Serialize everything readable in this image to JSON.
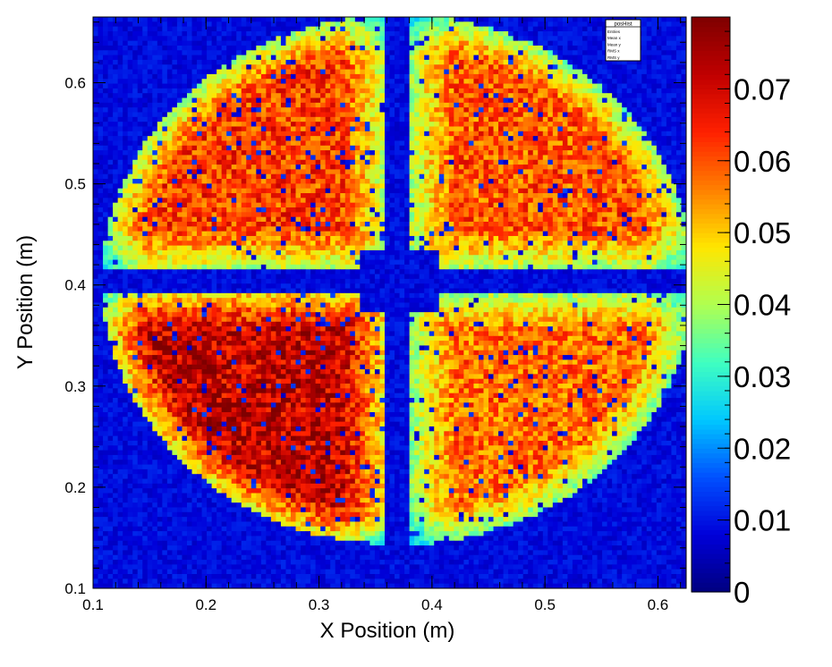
{
  "chart_data": {
    "type": "heatmap",
    "title": "",
    "xlabel": "X Position (m)",
    "ylabel": "Y Position (m)",
    "xlim": [
      0.1,
      0.625
    ],
    "ylim": [
      0.1,
      0.665
    ],
    "x_ticks": [
      0.1,
      0.2,
      0.3,
      0.4,
      0.5,
      0.6
    ],
    "x_tick_labels": [
      "0.1",
      "0.2",
      "0.3",
      "0.4",
      "0.5",
      "0.6"
    ],
    "y_ticks": [
      0.1,
      0.2,
      0.3,
      0.4,
      0.5,
      0.6
    ],
    "y_tick_labels": [
      "0.1",
      "0.2",
      "0.3",
      "0.4",
      "0.5",
      "0.6"
    ],
    "colorbar": {
      "min": 0,
      "max": 0.08,
      "ticks": [
        0,
        0.01,
        0.02,
        0.03,
        0.04,
        0.05,
        0.06,
        0.07
      ],
      "tick_labels": [
        "0",
        "0.01",
        "0.02",
        "0.03",
        "0.04",
        "0.05",
        "0.06",
        "0.07"
      ]
    },
    "colormap": [
      "#00007f",
      "#0000d9",
      "#0050ff",
      "#00c8ff",
      "#40ffc0",
      "#b0ff50",
      "#ffe600",
      "#ff8000",
      "#ff2000",
      "#c00000",
      "#7f0000"
    ],
    "background_color": "#0a2a8f",
    "grid": false,
    "stats_box": {
      "title": "posHist",
      "rows": [
        "Entries",
        "Mean x",
        "Mean y",
        "RMS x",
        "RMS y"
      ]
    },
    "field": {
      "description_values": {
        "circle_center": [
          0.37,
          0.405
        ],
        "circle_radius": 0.262,
        "gap_x_center": 0.37,
        "gap_y_center": 0.405,
        "gap_half_width": 0.012,
        "inner_square_x": [
          0.335,
          0.405
        ],
        "inner_square_y": [
          0.375,
          0.435
        ],
        "q_top_left_peak": 0.062,
        "q_top_right_peak": 0.06,
        "q_bottom_left_peak": 0.072,
        "q_bottom_right_peak": 0.058
      }
    }
  }
}
